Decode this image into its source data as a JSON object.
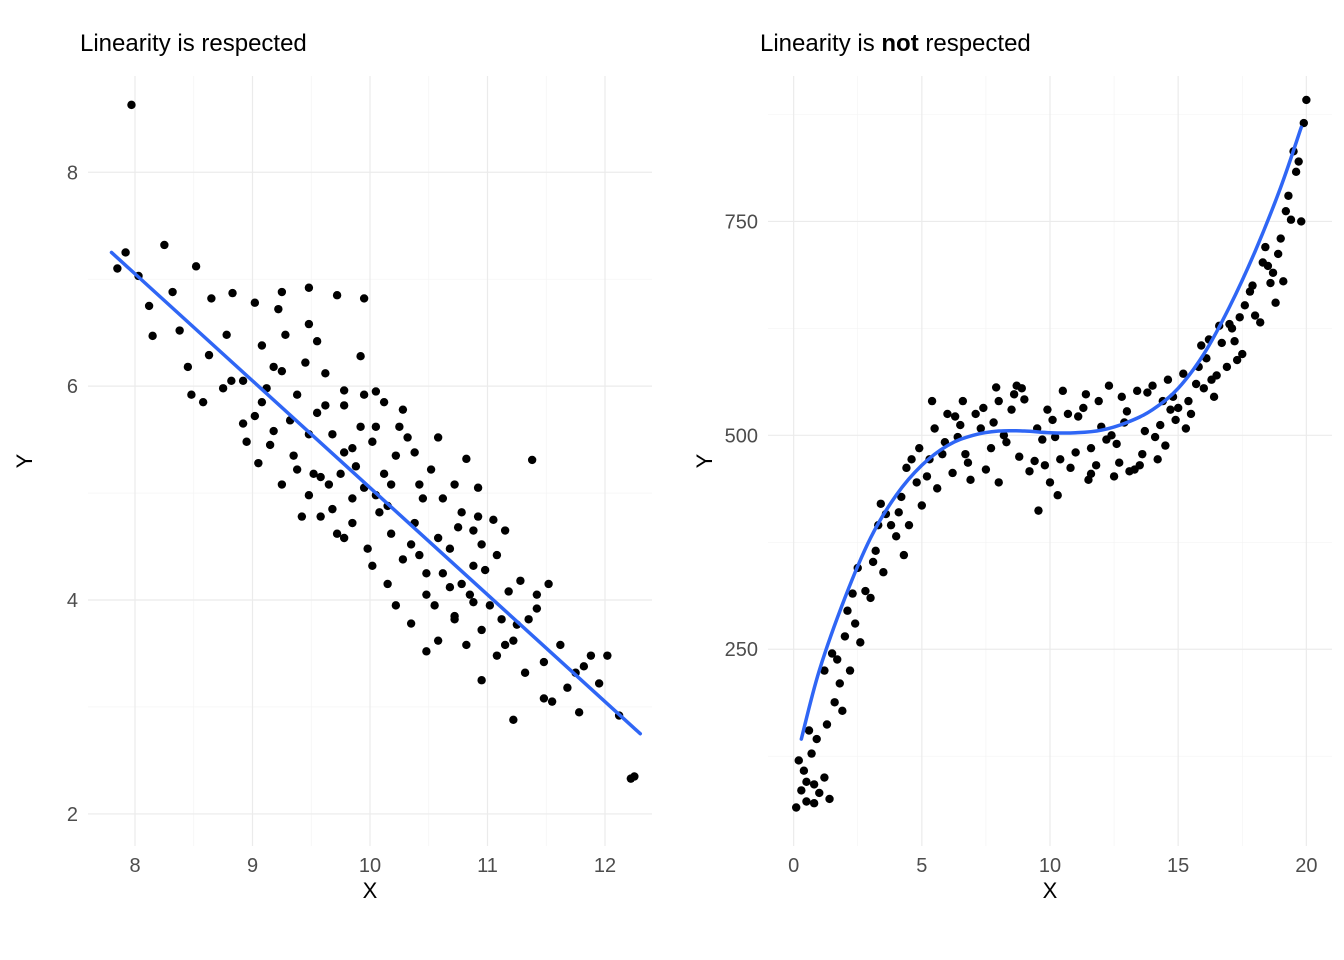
{
  "figure_width": 1344,
  "figure_height": 960,
  "background_color": "#ffffff",
  "grid_major_color": "#ebebeb",
  "grid_minor_color": "#f3f3f3",
  "tick_label_color": "#4d4d4d",
  "tick_label_fontsize": 20,
  "axis_label_fontsize": 22,
  "title_fontsize": 24,
  "point_color": "#000000",
  "point_radius": 4.2,
  "line_color": "#2f66f5",
  "line_width": 3.5,
  "left": {
    "title_parts": [
      {
        "text": "Linearity is respected",
        "bold": false
      }
    ],
    "xlabel": "X",
    "ylabel": "Y",
    "xlim": [
      7.6,
      12.4
    ],
    "ylim": [
      1.7,
      8.9
    ],
    "xticks": [
      8,
      9,
      10,
      11,
      12
    ],
    "yticks": [
      2,
      4,
      6,
      8
    ],
    "xminor": [
      8.5,
      9.5,
      10.5,
      11.5
    ],
    "yminor": [
      3,
      5,
      7
    ],
    "line_type": "linear",
    "line_points": [
      [
        7.8,
        7.25
      ],
      [
        12.3,
        2.75
      ]
    ],
    "points": [
      [
        7.97,
        8.63
      ],
      [
        7.85,
        7.1
      ],
      [
        7.92,
        7.25
      ],
      [
        8.03,
        7.03
      ],
      [
        8.25,
        7.32
      ],
      [
        8.52,
        7.12
      ],
      [
        8.12,
        6.75
      ],
      [
        8.15,
        6.47
      ],
      [
        8.65,
        6.82
      ],
      [
        8.83,
        6.87
      ],
      [
        9.02,
        6.78
      ],
      [
        9.25,
        6.88
      ],
      [
        9.48,
        6.92
      ],
      [
        9.72,
        6.85
      ],
      [
        9.95,
        6.82
      ],
      [
        8.45,
        6.18
      ],
      [
        8.63,
        6.29
      ],
      [
        8.75,
        5.98
      ],
      [
        8.92,
        6.05
      ],
      [
        9.08,
        6.38
      ],
      [
        9.25,
        6.14
      ],
      [
        9.45,
        6.22
      ],
      [
        9.02,
        5.72
      ],
      [
        9.18,
        5.58
      ],
      [
        9.35,
        5.35
      ],
      [
        9.48,
        5.55
      ],
      [
        9.62,
        5.82
      ],
      [
        9.78,
        5.96
      ],
      [
        9.95,
        5.92
      ],
      [
        10.12,
        5.85
      ],
      [
        10.28,
        5.78
      ],
      [
        9.05,
        5.28
      ],
      [
        9.15,
        5.45
      ],
      [
        9.25,
        5.08
      ],
      [
        9.38,
        5.22
      ],
      [
        9.48,
        4.98
      ],
      [
        9.58,
        5.15
      ],
      [
        9.68,
        4.85
      ],
      [
        9.78,
        5.38
      ],
      [
        9.85,
        5.42
      ],
      [
        9.92,
        5.62
      ],
      [
        10.02,
        5.48
      ],
      [
        10.12,
        5.18
      ],
      [
        10.22,
        5.35
      ],
      [
        10.32,
        5.52
      ],
      [
        10.42,
        5.08
      ],
      [
        10.52,
        5.22
      ],
      [
        10.62,
        4.95
      ],
      [
        10.72,
        5.08
      ],
      [
        10.82,
        5.32
      ],
      [
        10.92,
        4.78
      ],
      [
        11.38,
        5.31
      ],
      [
        9.58,
        4.78
      ],
      [
        9.72,
        4.62
      ],
      [
        9.85,
        4.72
      ],
      [
        9.98,
        4.48
      ],
      [
        10.08,
        4.82
      ],
      [
        10.18,
        4.62
      ],
      [
        10.28,
        4.38
      ],
      [
        10.38,
        4.72
      ],
      [
        10.48,
        4.25
      ],
      [
        10.58,
        4.58
      ],
      [
        10.68,
        4.48
      ],
      [
        10.78,
        4.15
      ],
      [
        10.88,
        4.32
      ],
      [
        10.98,
        4.28
      ],
      [
        11.08,
        4.42
      ],
      [
        11.18,
        4.08
      ],
      [
        11.28,
        4.18
      ],
      [
        11.42,
        3.92
      ],
      [
        10.22,
        3.95
      ],
      [
        10.35,
        3.78
      ],
      [
        10.48,
        4.05
      ],
      [
        10.58,
        3.62
      ],
      [
        10.72,
        3.82
      ],
      [
        10.82,
        3.58
      ],
      [
        10.95,
        3.72
      ],
      [
        11.08,
        3.48
      ],
      [
        11.22,
        3.62
      ],
      [
        11.35,
        3.82
      ],
      [
        11.48,
        3.42
      ],
      [
        11.62,
        3.58
      ],
      [
        11.75,
        3.32
      ],
      [
        11.88,
        3.48
      ],
      [
        10.95,
        3.25
      ],
      [
        11.22,
        2.88
      ],
      [
        11.48,
        3.08
      ],
      [
        11.82,
        3.38
      ],
      [
        11.95,
        3.22
      ],
      [
        12.02,
        3.48
      ],
      [
        12.12,
        2.92
      ],
      [
        12.25,
        2.35
      ],
      [
        12.22,
        2.33
      ],
      [
        8.38,
        6.52
      ],
      [
        8.78,
        6.48
      ],
      [
        9.12,
        5.98
      ],
      [
        9.55,
        6.42
      ],
      [
        9.88,
        5.25
      ],
      [
        10.05,
        4.98
      ],
      [
        10.35,
        4.52
      ],
      [
        10.75,
        4.68
      ],
      [
        11.15,
        4.65
      ],
      [
        11.32,
        3.32
      ],
      [
        10.48,
        3.52
      ],
      [
        9.38,
        5.92
      ],
      [
        9.65,
        5.08
      ],
      [
        10.45,
        4.95
      ],
      [
        9.28,
        6.48
      ],
      [
        8.92,
        5.65
      ],
      [
        9.78,
        4.58
      ],
      [
        10.18,
        5.08
      ],
      [
        10.88,
        3.98
      ],
      [
        11.52,
        4.15
      ],
      [
        9.92,
        6.28
      ],
      [
        10.58,
        5.52
      ],
      [
        9.48,
        6.58
      ],
      [
        8.58,
        5.85
      ],
      [
        10.05,
        5.95
      ],
      [
        10.62,
        4.25
      ],
      [
        11.02,
        3.95
      ],
      [
        9.18,
        6.18
      ],
      [
        9.42,
        4.78
      ],
      [
        10.95,
        4.52
      ],
      [
        10.15,
        4.15
      ],
      [
        9.85,
        4.95
      ],
      [
        10.38,
        5.38
      ],
      [
        11.55,
        3.05
      ],
      [
        11.78,
        2.95
      ],
      [
        8.95,
        5.48
      ],
      [
        9.55,
        5.75
      ],
      [
        10.72,
        3.85
      ],
      [
        11.05,
        4.75
      ],
      [
        10.42,
        4.42
      ],
      [
        9.32,
        5.68
      ],
      [
        10.85,
        4.05
      ],
      [
        11.15,
        3.58
      ],
      [
        8.32,
        6.88
      ],
      [
        9.08,
        5.85
      ],
      [
        10.25,
        5.62
      ],
      [
        9.75,
        5.18
      ],
      [
        10.92,
        5.05
      ],
      [
        10.55,
        3.95
      ],
      [
        9.62,
        6.12
      ],
      [
        11.68,
        3.18
      ],
      [
        8.48,
        5.92
      ],
      [
        9.95,
        5.05
      ],
      [
        10.78,
        4.82
      ],
      [
        9.22,
        6.72
      ],
      [
        10.02,
        4.32
      ],
      [
        10.88,
        4.65
      ],
      [
        9.68,
        5.55
      ],
      [
        11.25,
        3.77
      ],
      [
        8.82,
        6.05
      ],
      [
        10.15,
        4.88
      ],
      [
        11.42,
        4.05
      ],
      [
        9.52,
        5.18
      ],
      [
        10.05,
        5.62
      ],
      [
        10.68,
        4.12
      ],
      [
        9.78,
        5.82
      ],
      [
        11.12,
        3.82
      ]
    ]
  },
  "right": {
    "title_parts": [
      {
        "text": "Linearity is ",
        "bold": false
      },
      {
        "text": "not",
        "bold": true
      },
      {
        "text": " respected",
        "bold": false
      }
    ],
    "xlabel": "X",
    "ylabel": "Y",
    "xlim": [
      -1,
      21
    ],
    "ylim": [
      20,
      920
    ],
    "xticks": [
      0,
      5,
      10,
      15,
      20
    ],
    "yticks": [
      250,
      500,
      750
    ],
    "xminor": [
      2.5,
      7.5,
      12.5,
      17.5
    ],
    "yminor": [
      125,
      375,
      625,
      875
    ],
    "line_type": "cubic",
    "curve": [
      [
        0.3,
        145
      ],
      [
        1,
        225
      ],
      [
        2,
        310
      ],
      [
        3,
        380
      ],
      [
        4,
        430
      ],
      [
        5,
        465
      ],
      [
        6,
        488
      ],
      [
        7,
        500
      ],
      [
        8,
        505
      ],
      [
        9,
        505
      ],
      [
        10,
        503
      ],
      [
        11,
        503
      ],
      [
        12,
        506
      ],
      [
        13,
        515
      ],
      [
        14,
        530
      ],
      [
        15,
        555
      ],
      [
        16,
        595
      ],
      [
        17,
        650
      ],
      [
        18,
        715
      ],
      [
        19,
        790
      ],
      [
        19.8,
        860
      ]
    ],
    "points": [
      [
        0.1,
        65
      ],
      [
        0.3,
        85
      ],
      [
        0.5,
        72
      ],
      [
        0.8,
        92
      ],
      [
        0.4,
        108
      ],
      [
        0.6,
        155
      ],
      [
        1.0,
        82
      ],
      [
        1.2,
        100
      ],
      [
        1.4,
        75
      ],
      [
        0.9,
        145
      ],
      [
        1.6,
        188
      ],
      [
        1.8,
        210
      ],
      [
        1.2,
        225
      ],
      [
        1.5,
        245
      ],
      [
        2.0,
        265
      ],
      [
        2.2,
        225
      ],
      [
        2.4,
        280
      ],
      [
        2.8,
        318
      ],
      [
        2.5,
        345
      ],
      [
        3.0,
        310
      ],
      [
        3.2,
        365
      ],
      [
        3.5,
        340
      ],
      [
        3.8,
        395
      ],
      [
        3.4,
        420
      ],
      [
        4.0,
        382
      ],
      [
        4.2,
        428
      ],
      [
        4.5,
        395
      ],
      [
        4.8,
        445
      ],
      [
        4.4,
        462
      ],
      [
        5.0,
        418
      ],
      [
        5.3,
        472
      ],
      [
        5.6,
        438
      ],
      [
        5.9,
        492
      ],
      [
        5.5,
        508
      ],
      [
        6.2,
        456
      ],
      [
        6.5,
        512
      ],
      [
        6.8,
        468
      ],
      [
        7.1,
        525
      ],
      [
        6.7,
        478
      ],
      [
        7.4,
        532
      ],
      [
        7.7,
        485
      ],
      [
        8.0,
        540
      ],
      [
        8.3,
        492
      ],
      [
        8.6,
        548
      ],
      [
        8.2,
        500
      ],
      [
        8.9,
        555
      ],
      [
        9.2,
        458
      ],
      [
        9.5,
        508
      ],
      [
        9.8,
        465
      ],
      [
        9.4,
        470
      ],
      [
        10.1,
        518
      ],
      [
        10.4,
        472
      ],
      [
        10.7,
        525
      ],
      [
        10.3,
        430
      ],
      [
        11.0,
        480
      ],
      [
        11.3,
        532
      ],
      [
        11.6,
        485
      ],
      [
        11.9,
        540
      ],
      [
        11.5,
        448
      ],
      [
        12.2,
        495
      ],
      [
        12.5,
        452
      ],
      [
        12.8,
        545
      ],
      [
        12.4,
        500
      ],
      [
        13.1,
        458
      ],
      [
        13.4,
        552
      ],
      [
        13.7,
        505
      ],
      [
        13.3,
        460
      ],
      [
        14.0,
        558
      ],
      [
        14.3,
        512
      ],
      [
        14.6,
        565
      ],
      [
        14.2,
        472
      ],
      [
        14.9,
        518
      ],
      [
        15.2,
        572
      ],
      [
        15.5,
        525
      ],
      [
        15.8,
        580
      ],
      [
        15.4,
        540
      ],
      [
        16.1,
        590
      ],
      [
        16.4,
        545
      ],
      [
        16.7,
        608
      ],
      [
        16.3,
        565
      ],
      [
        17.0,
        630
      ],
      [
        17.3,
        588
      ],
      [
        17.6,
        652
      ],
      [
        17.2,
        610
      ],
      [
        17.9,
        675
      ],
      [
        18.2,
        632
      ],
      [
        18.5,
        698
      ],
      [
        18.8,
        655
      ],
      [
        18.4,
        720
      ],
      [
        19.1,
        680
      ],
      [
        19.4,
        752
      ],
      [
        19.7,
        820
      ],
      [
        19.3,
        780
      ],
      [
        20.0,
        892
      ],
      [
        19.9,
        865
      ],
      [
        19.5,
        832
      ],
      [
        19.8,
        750
      ],
      [
        0.7,
        128
      ],
      [
        2.1,
        295
      ],
      [
        3.6,
        408
      ],
      [
        5.2,
        452
      ],
      [
        6.4,
        498
      ],
      [
        7.8,
        515
      ],
      [
        9.0,
        542
      ],
      [
        10.8,
        462
      ],
      [
        12.0,
        510
      ],
      [
        13.6,
        478
      ],
      [
        14.5,
        488
      ],
      [
        15.7,
        560
      ],
      [
        16.9,
        580
      ],
      [
        18.0,
        640
      ],
      [
        18.9,
        712
      ],
      [
        19.6,
        808
      ],
      [
        6.0,
        525
      ],
      [
        7.5,
        460
      ],
      [
        8.8,
        475
      ],
      [
        10.5,
        552
      ],
      [
        11.8,
        465
      ],
      [
        13.0,
        528
      ],
      [
        14.8,
        545
      ],
      [
        16.2,
        612
      ],
      [
        17.5,
        595
      ],
      [
        18.6,
        678
      ],
      [
        1.9,
        178
      ],
      [
        3.1,
        352
      ],
      [
        4.9,
        485
      ],
      [
        6.9,
        448
      ],
      [
        8.5,
        530
      ],
      [
        10.2,
        498
      ],
      [
        11.4,
        548
      ],
      [
        12.7,
        468
      ],
      [
        14.1,
        498
      ],
      [
        15.0,
        532
      ],
      [
        15.9,
        605
      ],
      [
        17.1,
        625
      ],
      [
        18.3,
        702
      ],
      [
        19.2,
        762
      ],
      [
        0.2,
        120
      ],
      [
        2.6,
        258
      ],
      [
        4.3,
        360
      ],
      [
        6.3,
        522
      ],
      [
        9.7,
        495
      ],
      [
        11.1,
        522
      ],
      [
        12.6,
        490
      ],
      [
        14.7,
        530
      ],
      [
        16.5,
        570
      ],
      [
        17.8,
        668
      ],
      [
        18.7,
        690
      ],
      [
        19.0,
        730
      ],
      [
        13.8,
        550
      ],
      [
        9.55,
        412
      ],
      [
        5.4,
        540
      ],
      [
        4.1,
        410
      ],
      [
        2.3,
        315
      ],
      [
        7.9,
        556
      ],
      [
        8.0,
        445
      ],
      [
        12.3,
        558
      ],
      [
        15.3,
        508
      ],
      [
        16.0,
        555
      ],
      [
        17.4,
        638
      ],
      [
        0.5,
        95
      ],
      [
        1.3,
        162
      ],
      [
        0.8,
        70
      ],
      [
        1.7,
        238
      ],
      [
        3.3,
        395
      ],
      [
        4.6,
        472
      ],
      [
        5.8,
        478
      ],
      [
        7.3,
        508
      ],
      [
        8.7,
        558
      ],
      [
        9.9,
        530
      ],
      [
        11.6,
        455
      ],
      [
        12.9,
        515
      ],
      [
        14.4,
        540
      ],
      [
        16.6,
        628
      ],
      [
        6.6,
        540
      ],
      [
        10.0,
        445
      ],
      [
        13.5,
        465
      ]
    ]
  }
}
